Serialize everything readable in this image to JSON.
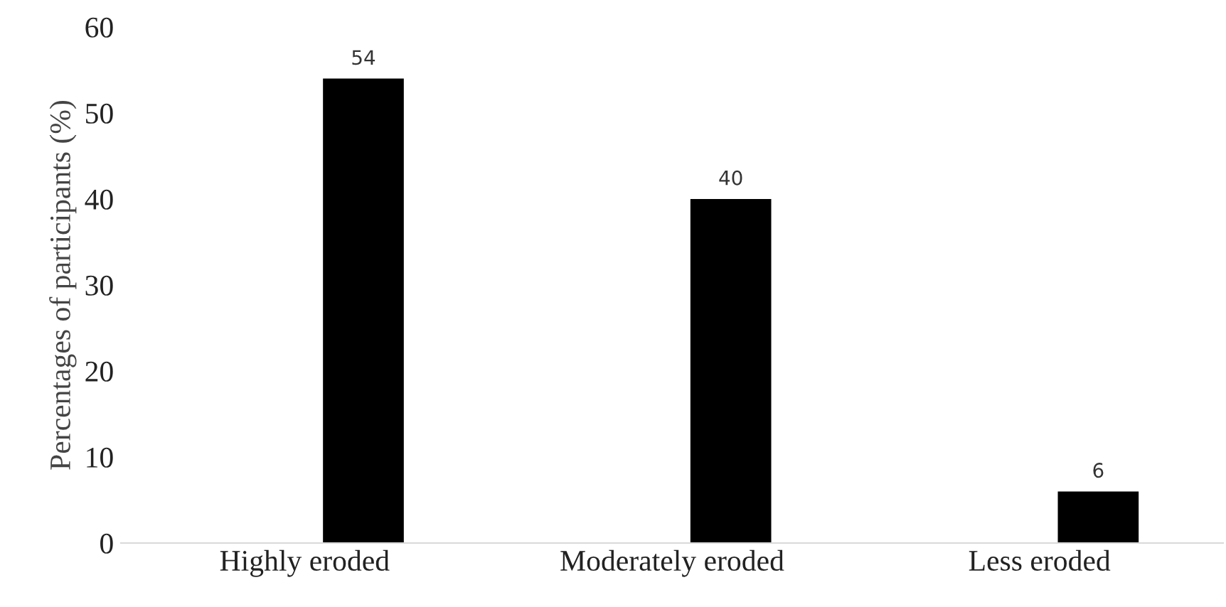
{
  "chart_data": {
    "type": "bar",
    "ylabel": "Percentages of participants (%)",
    "categories": [
      "Highly eroded",
      "Moderately eroded",
      "Less eroded"
    ],
    "values": [
      54,
      40,
      6
    ],
    "color": "#000000",
    "ylim": [
      0,
      60
    ],
    "yticks": [
      0,
      10,
      20,
      30,
      40,
      50,
      60
    ],
    "grid": false,
    "data_labels": true
  }
}
